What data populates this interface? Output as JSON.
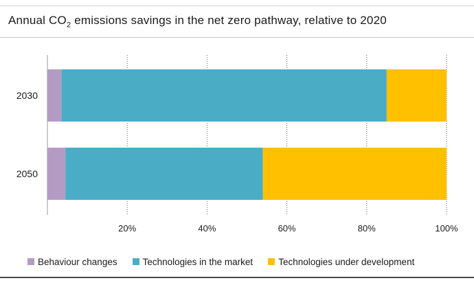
{
  "chart_data": {
    "type": "bar",
    "orientation": "horizontal",
    "stacked": true,
    "title_parts": {
      "prefix": "Annual CO",
      "subscript": "2",
      "suffix": " emissions savings in the net zero pathway, relative to 2020"
    },
    "categories": [
      "2030",
      "2050"
    ],
    "series": [
      {
        "name": "Behaviour changes",
        "color": "#b49bc4",
        "values": [
          3.5,
          4.5
        ]
      },
      {
        "name": "Technologies in the market",
        "color": "#4bacc6",
        "values": [
          81.5,
          49.5
        ]
      },
      {
        "name": "Technologies under development",
        "color": "#ffc000",
        "values": [
          15,
          46
        ]
      }
    ],
    "xlim": [
      0,
      100
    ],
    "x_ticks": [
      "20%",
      "40%",
      "60%",
      "80%",
      "100%"
    ],
    "x_tick_values": [
      20,
      40,
      60,
      80,
      100
    ],
    "grid": "vertical dotted",
    "legend_position": "bottom"
  }
}
